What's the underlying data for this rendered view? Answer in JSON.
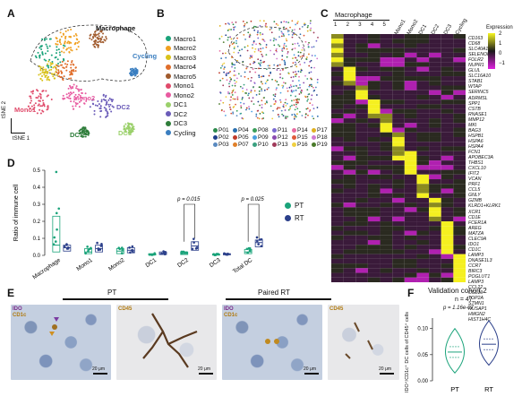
{
  "panels": {
    "a": "A",
    "b": "B",
    "c": "C",
    "d": "D",
    "e": "E",
    "f": "F"
  },
  "panel_a": {
    "cluster_labels": {
      "macrophage": "Macrophage",
      "cycling": "Cycling",
      "mono1": "Mono1",
      "mono2": "Mono2",
      "dc1": "DC1",
      "dc2": "DC2",
      "dc3": "DC3"
    },
    "axis_y": "tSNE 2",
    "axis_x": "tSNE 1",
    "legend": [
      {
        "label": "Macro1",
        "color": "#1aa37a"
      },
      {
        "label": "Macro2",
        "color": "#f0a020"
      },
      {
        "label": "Macro3",
        "color": "#d9c21a"
      },
      {
        "label": "Macro4",
        "color": "#e06d2a"
      },
      {
        "label": "Macro5",
        "color": "#a05a2c"
      },
      {
        "label": "Mono1",
        "color": "#e04a6a"
      },
      {
        "label": "Mono2",
        "color": "#e85aa0"
      },
      {
        "label": "DC1",
        "color": "#9ad06a"
      },
      {
        "label": "DC2",
        "color": "#6a5bb8"
      },
      {
        "label": "DC3",
        "color": "#2e7d3a"
      },
      {
        "label": "Cycling",
        "color": "#3a7ec0"
      }
    ]
  },
  "panel_b": {
    "legend": [
      {
        "label": "P01",
        "color": "#2b8a4b"
      },
      {
        "label": "P04",
        "color": "#2a6fb0"
      },
      {
        "label": "P08",
        "color": "#3a9e5a"
      },
      {
        "label": "P11",
        "color": "#7a6ad0"
      },
      {
        "label": "P14",
        "color": "#e86ca2"
      },
      {
        "label": "P17",
        "color": "#e0b020"
      },
      {
        "label": "P02",
        "color": "#1f3f8a"
      },
      {
        "label": "P05",
        "color": "#c03a2a"
      },
      {
        "label": "P09",
        "color": "#4aa0e0"
      },
      {
        "label": "P12",
        "color": "#8a4ab0"
      },
      {
        "label": "P15",
        "color": "#e05a3a"
      },
      {
        "label": "P18",
        "color": "#d07ad0"
      },
      {
        "label": "P03",
        "color": "#5a8ac0"
      },
      {
        "label": "P07",
        "color": "#e0802a"
      },
      {
        "label": "P10",
        "color": "#3aa080"
      },
      {
        "label": "P13",
        "color": "#a03a5a"
      },
      {
        "label": "P16",
        "color": "#f0d040"
      },
      {
        "label": "P19",
        "color": "#4a7a2a"
      }
    ]
  },
  "panel_c": {
    "header_macrophage": "Macrophage",
    "cols": [
      "1",
      "2",
      "3",
      "4",
      "5",
      "Mono1",
      "Mono2",
      "DC1",
      "DC2",
      "DC3",
      "Cycling"
    ],
    "legend_title": "Expression",
    "legend_ticks": [
      "2",
      "1",
      "0",
      "−1"
    ],
    "genes": [
      "CD163",
      "CD68",
      "SLC40A1",
      "SELENOP",
      "FOLR2",
      "NUPR1",
      "GLUL",
      "SLC16A10",
      "STAB1",
      "WTAP",
      "SERINC5",
      "ADRMSL",
      "SPP1",
      "CSTB",
      "RNASE1",
      "MMP12",
      "MKI",
      "BAG3",
      "HSPB1",
      "HSPA6",
      "HSPA4",
      "FCN1",
      "APOBEC3A",
      "THBS1",
      "CXCL10",
      "IFIT2",
      "VCAN",
      "PRF1",
      "CCL5",
      "GNLY",
      "GZMB",
      "KLRD1+KLRK1",
      "XCR1",
      "CD1E",
      "FCER1A",
      "AREG",
      "MATZA",
      "CLEC9A",
      "IDO1",
      "CD1C",
      "LAMP3",
      "DNASE1L3",
      "CCR7",
      "BIRC3",
      "POGLUT1",
      "LAMP3",
      "CCL22",
      "CCL19",
      "TOP2A",
      "STMN1",
      "NUSAP1",
      "HMGN2",
      "HIST1H4C"
    ]
  },
  "panel_d": {
    "ylabel": "Ratio of immune cell",
    "categories": [
      "Macrophage",
      "Mono1",
      "Mono2",
      "DC1",
      "DC2",
      "DC3",
      "Total DC"
    ],
    "pvals": [
      {
        "text": "p = 0.015",
        "category": "DC2"
      },
      {
        "text": "p = 0.025",
        "category": "Total DC"
      }
    ],
    "legend": [
      {
        "label": "PT",
        "color": "#1aa37a"
      },
      {
        "label": "RT",
        "color": "#2b3f8a"
      }
    ]
  },
  "panel_e": {
    "pt": "PT",
    "rt": "Paired RT",
    "ido": "IDO",
    "cd1c": "CD1c",
    "cd45": "CD45",
    "scale": "20 μm"
  },
  "panel_f": {
    "title": "Validation cohort 2",
    "n": "n = 47",
    "p": "p = 1.16e-07",
    "ylabel": "IDO⁺/CD1c⁺ DC cells of CD45⁺ cells",
    "yticks": [
      "0.10",
      "0.05",
      "0.00"
    ],
    "groups": [
      "PT",
      "RT"
    ]
  },
  "chart_data": [
    {
      "type": "box",
      "panel": "D",
      "ylabel": "Ratio of immune cell",
      "ylim": [
        0,
        0.5
      ],
      "yticks": [
        0.0,
        0.1,
        0.2,
        0.3,
        0.4,
        0.5
      ],
      "categories": [
        "Macrophage",
        "Mono1",
        "Mono2",
        "DC1",
        "DC2",
        "DC3",
        "Total DC"
      ],
      "series": [
        {
          "name": "PT",
          "medians": [
            0.06,
            0.02,
            0.025,
            0.005,
            0.01,
            0.003,
            0.02
          ],
          "q1": [
            0.02,
            0.01,
            0.01,
            0.002,
            0.005,
            0.001,
            0.01
          ],
          "q3": [
            0.23,
            0.04,
            0.04,
            0.01,
            0.02,
            0.008,
            0.035
          ]
        },
        {
          "name": "RT",
          "medians": [
            0.045,
            0.04,
            0.03,
            0.01,
            0.055,
            0.006,
            0.075
          ],
          "q1": [
            0.025,
            0.02,
            0.015,
            0.005,
            0.03,
            0.003,
            0.05
          ],
          "q3": [
            0.06,
            0.06,
            0.045,
            0.02,
            0.08,
            0.01,
            0.09
          ]
        }
      ],
      "annotations": [
        "p = 0.015",
        "p = 0.025"
      ]
    },
    {
      "type": "violin",
      "panel": "F",
      "title": "Validation cohort 2",
      "categories": [
        "PT",
        "RT"
      ],
      "ylim": [
        0,
        0.12
      ],
      "medians": [
        0.055,
        0.07
      ]
    }
  ]
}
